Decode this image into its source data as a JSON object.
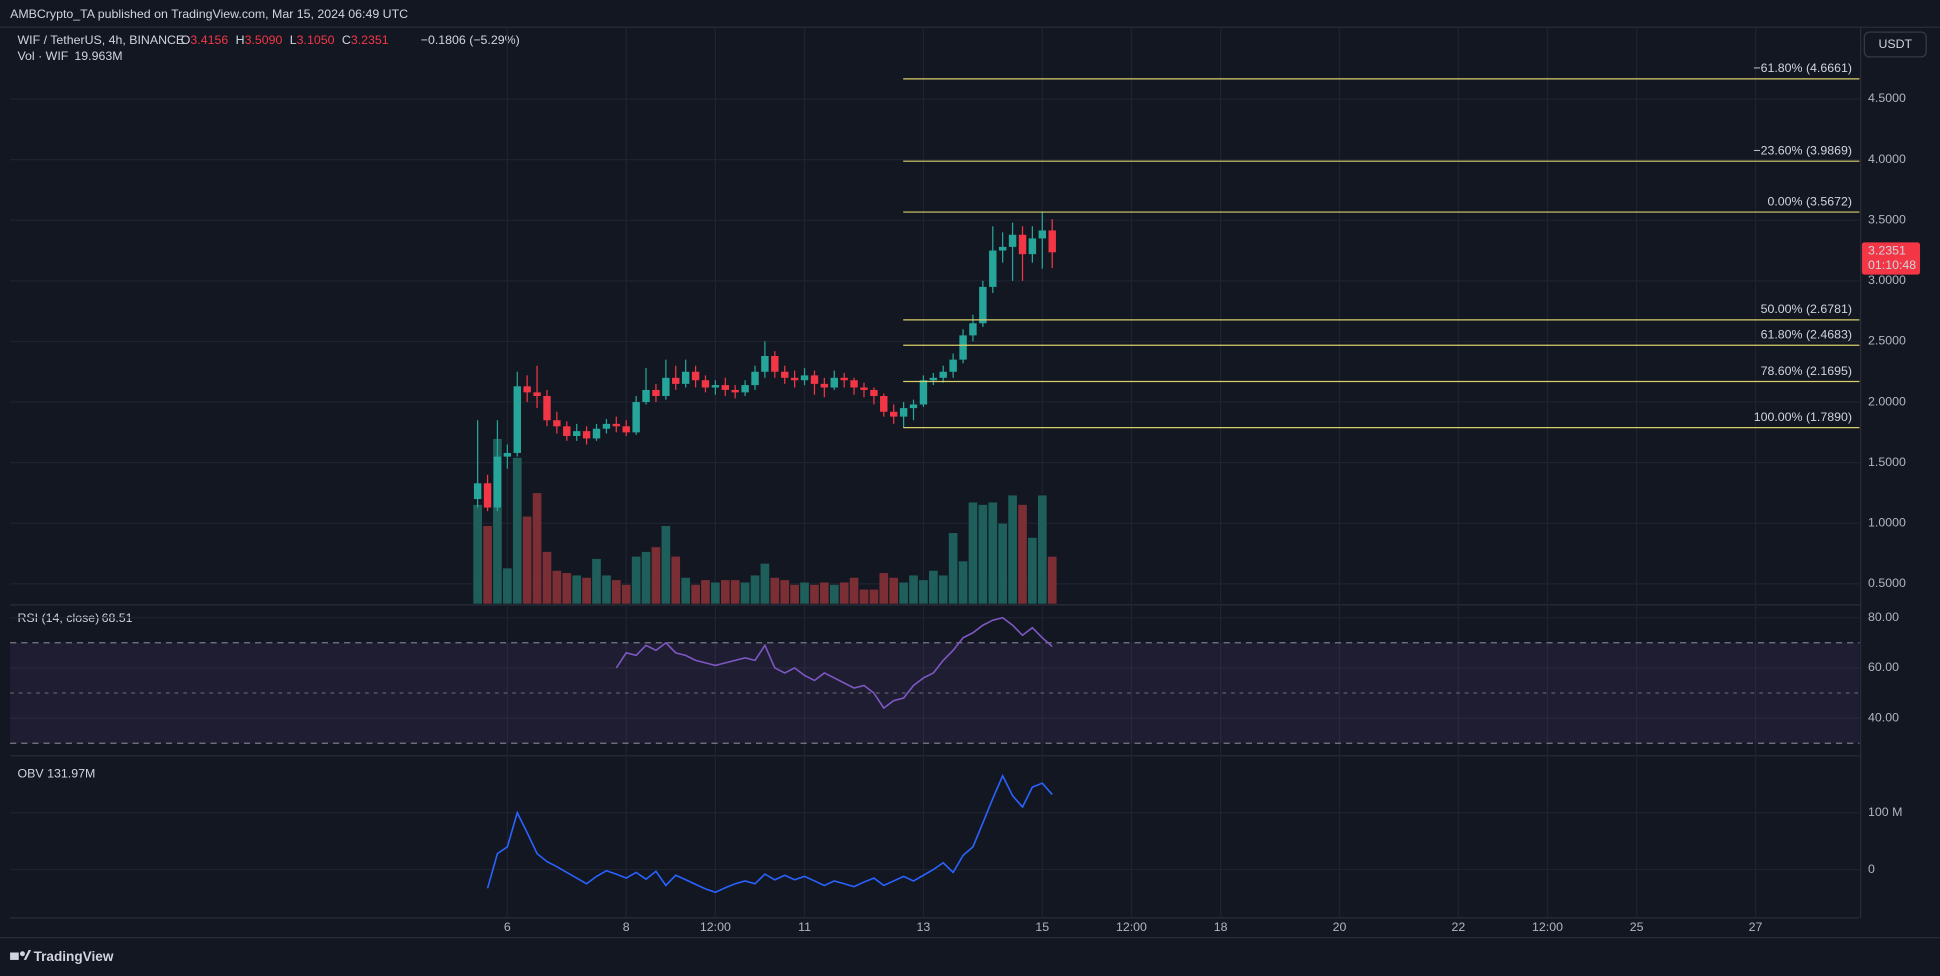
{
  "header": {
    "publisher": "AMBCrypto_TA published on TradingView.com, Mar 15, 2024 06:49 UTC",
    "symbol": "WIF / TetherUS, 4h, BINANCE",
    "ohlc": [
      {
        "key": "O",
        "value": "3.4156"
      },
      {
        "key": "H",
        "value": "3.5090"
      },
      {
        "key": "L",
        "value": "3.1050"
      },
      {
        "key": "C",
        "value": "3.2351"
      }
    ],
    "change": "−0.1806 (−5.29%)"
  },
  "footer": {
    "brand": "TradingView"
  },
  "chart_data": [
    {
      "type": "candlestick",
      "currency": "USDT",
      "up_color": "#26a69a",
      "down_color": "#f23645",
      "x": [
        5.5,
        5.667,
        5.833,
        6,
        6.167,
        6.333,
        6.5,
        6.667,
        6.833,
        7,
        7.167,
        7.333,
        7.5,
        7.667,
        7.833,
        8,
        8.167,
        8.333,
        8.5,
        8.667,
        8.833,
        9,
        9.167,
        9.333,
        9.5,
        9.667,
        9.833,
        10,
        10.167,
        10.333,
        10.5,
        10.667,
        10.833,
        11,
        11.167,
        11.333,
        11.5,
        11.667,
        11.833,
        12,
        12.167,
        12.333,
        12.5,
        12.667,
        12.833,
        13,
        13.167,
        13.333,
        13.5,
        13.667,
        13.833,
        14,
        14.167,
        14.333,
        14.5,
        14.667,
        14.833,
        15,
        15.167
      ],
      "open": [
        1.2,
        1.33,
        1.13,
        1.55,
        1.58,
        2.13,
        2.08,
        2.05,
        1.85,
        1.8,
        1.72,
        1.76,
        1.7,
        1.78,
        1.82,
        1.8,
        1.75,
        2.0,
        2.1,
        2.05,
        2.2,
        2.15,
        2.25,
        2.18,
        2.12,
        2.14,
        2.1,
        2.08,
        2.14,
        2.25,
        2.38,
        2.25,
        2.2,
        2.18,
        2.22,
        2.15,
        2.12,
        2.2,
        2.18,
        2.12,
        2.1,
        2.05,
        1.92,
        1.88,
        1.95,
        1.98,
        2.18,
        2.2,
        2.25,
        2.35,
        2.55,
        2.65,
        2.95,
        3.25,
        3.28,
        3.38,
        3.22,
        3.35,
        3.4156
      ],
      "high": [
        1.85,
        1.4,
        1.85,
        1.65,
        2.25,
        2.22,
        2.3,
        2.1,
        1.92,
        1.84,
        1.82,
        1.8,
        1.82,
        1.86,
        1.88,
        1.85,
        2.05,
        2.28,
        2.15,
        2.35,
        2.3,
        2.35,
        2.3,
        2.22,
        2.18,
        2.2,
        2.14,
        2.18,
        2.3,
        2.5,
        2.42,
        2.3,
        2.26,
        2.28,
        2.26,
        2.2,
        2.26,
        2.24,
        2.2,
        2.16,
        2.12,
        2.07,
        1.98,
        2.0,
        2.02,
        2.22,
        2.24,
        2.3,
        2.4,
        2.6,
        2.72,
        3.0,
        3.45,
        3.4,
        3.48,
        3.45,
        3.45,
        3.5672,
        3.509
      ],
      "low": [
        1.13,
        1.1,
        1.1,
        1.45,
        1.55,
        2.0,
        1.95,
        1.8,
        1.74,
        1.68,
        1.68,
        1.65,
        1.68,
        1.74,
        1.75,
        1.72,
        1.73,
        1.98,
        2.0,
        2.02,
        2.1,
        2.12,
        2.12,
        2.08,
        2.06,
        2.05,
        2.03,
        2.05,
        2.1,
        2.2,
        2.2,
        2.15,
        2.12,
        2.14,
        2.06,
        2.04,
        2.1,
        2.12,
        2.06,
        2.04,
        1.98,
        1.88,
        1.82,
        1.789,
        1.85,
        1.96,
        2.14,
        2.16,
        2.2,
        2.32,
        2.5,
        2.62,
        2.9,
        3.15,
        3.0,
        3.0,
        3.15,
        3.1,
        3.105
      ],
      "close": [
        1.33,
        1.13,
        1.55,
        1.58,
        2.13,
        2.08,
        2.05,
        1.85,
        1.8,
        1.72,
        1.76,
        1.7,
        1.78,
        1.82,
        1.8,
        1.75,
        2.0,
        2.1,
        2.05,
        2.2,
        2.15,
        2.25,
        2.18,
        2.12,
        2.14,
        2.1,
        2.08,
        2.14,
        2.25,
        2.38,
        2.25,
        2.2,
        2.18,
        2.22,
        2.15,
        2.12,
        2.2,
        2.18,
        2.12,
        2.1,
        2.05,
        1.92,
        1.88,
        1.95,
        1.98,
        2.18,
        2.2,
        2.25,
        2.35,
        2.55,
        2.65,
        2.95,
        3.25,
        3.28,
        3.38,
        3.22,
        3.35,
        3.4156,
        3.2351
      ],
      "xlim": [
        -2.366,
        28.747
      ],
      "xticks": [
        6,
        8,
        {
          "value": 9.5,
          "label": "12:00"
        },
        11,
        13,
        15,
        {
          "value": 16.5,
          "label": "12:00"
        },
        18,
        20,
        22,
        {
          "value": 23.5,
          "label": "12:00"
        },
        25,
        27
      ],
      "ylim": [
        0.337,
        5.092
      ],
      "yticks": [
        {
          "value": 0.5,
          "label": "0.5000"
        },
        {
          "value": 1,
          "label": "1.0000"
        },
        {
          "value": 1.5,
          "label": "1.5000"
        },
        {
          "value": 2,
          "label": "2.0000"
        },
        {
          "value": 2.5,
          "label": "2.5000"
        },
        {
          "value": 3,
          "label": "3.0000"
        },
        {
          "value": 3.5,
          "label": "3.5000"
        },
        {
          "value": 4,
          "label": "4.0000"
        },
        {
          "value": 4.5,
          "label": "4.5000"
        }
      ],
      "grid": true,
      "last_price": {
        "value": 3.2351,
        "label": "3.2351",
        "countdown": "01:10:48"
      },
      "fib_color": "#d9cf6a",
      "fib_levels": [
        {
          "value": 4.6661,
          "label": "−61.80% (4.6661)"
        },
        {
          "value": 3.9869,
          "label": "−23.60% (3.9869)"
        },
        {
          "value": 3.5672,
          "label": "0.00% (3.5672)"
        },
        {
          "value": 2.6781,
          "label": "50.00% (2.6781)"
        },
        {
          "value": 2.4683,
          "label": "61.80% (2.4683)"
        },
        {
          "value": 2.1695,
          "label": "78.60% (2.1695)"
        },
        {
          "value": 1.789,
          "label": "100.00% (1.7890)"
        }
      ],
      "volume": {
        "name": "Vol · WIF",
        "last_label": "19.963M",
        "ylim": [
          0,
          245
        ],
        "up_color": "#1f5f5b",
        "down_color": "#7b2f35",
        "values": [
          42,
          33,
          70,
          15,
          62,
          37,
          47,
          22,
          14,
          13,
          12,
          11,
          19,
          12,
          10,
          8,
          20,
          22,
          24,
          33,
          20,
          11,
          8,
          10,
          9,
          10,
          10,
          9,
          12,
          17,
          11,
          10,
          8,
          9,
          8,
          9,
          8,
          9,
          11,
          6,
          6,
          13,
          11,
          9,
          12,
          10,
          14,
          12,
          30,
          18,
          43,
          42,
          43,
          34,
          46,
          42,
          28,
          46,
          19.963
        ]
      }
    },
    {
      "type": "line",
      "title": "RSI (14, close)",
      "last_label": "68.51",
      "color": "#7e57c2",
      "values": [
        null,
        null,
        null,
        null,
        null,
        null,
        null,
        null,
        null,
        null,
        null,
        null,
        null,
        null,
        60,
        66,
        65,
        69,
        67,
        70,
        66,
        65,
        63,
        62,
        61,
        62,
        63,
        64,
        63,
        69,
        60,
        58,
        60,
        57,
        55,
        58,
        56,
        54,
        52,
        53,
        50,
        44,
        47,
        48,
        53,
        56,
        58,
        63,
        67,
        72,
        74,
        77,
        79,
        80,
        77,
        73,
        76,
        72,
        68.51
      ],
      "ylim": [
        25.5,
        84.6
      ],
      "yticks": [
        {
          "value": 40,
          "label": "40.00"
        },
        {
          "value": 60,
          "label": "60.00"
        },
        {
          "value": 80,
          "label": "80.00"
        }
      ],
      "bands": [
        30,
        70
      ],
      "middle": 50
    },
    {
      "type": "line",
      "title": "OBV",
      "last_label": "131.97M",
      "color": "#2962ff",
      "values": [
        null,
        -33,
        28,
        40,
        100,
        65,
        28,
        14,
        5,
        -5,
        -15,
        -25,
        -12,
        -2,
        -8,
        -15,
        -5,
        -17,
        -3,
        -28,
        -10,
        -18,
        -26,
        -34,
        -40,
        -32,
        -25,
        -20,
        -25,
        -8,
        -18,
        -10,
        -18,
        -12,
        -20,
        -28,
        -20,
        -25,
        -30,
        -22,
        -15,
        -28,
        -20,
        -12,
        -20,
        -10,
        0,
        12,
        -5,
        25,
        40,
        82,
        125,
        165,
        130,
        110,
        145,
        152,
        131.97
      ],
      "ylim": [
        -85,
        198
      ],
      "yticks": [
        0,
        {
          "value": 100,
          "label": "100 M"
        }
      ]
    }
  ]
}
